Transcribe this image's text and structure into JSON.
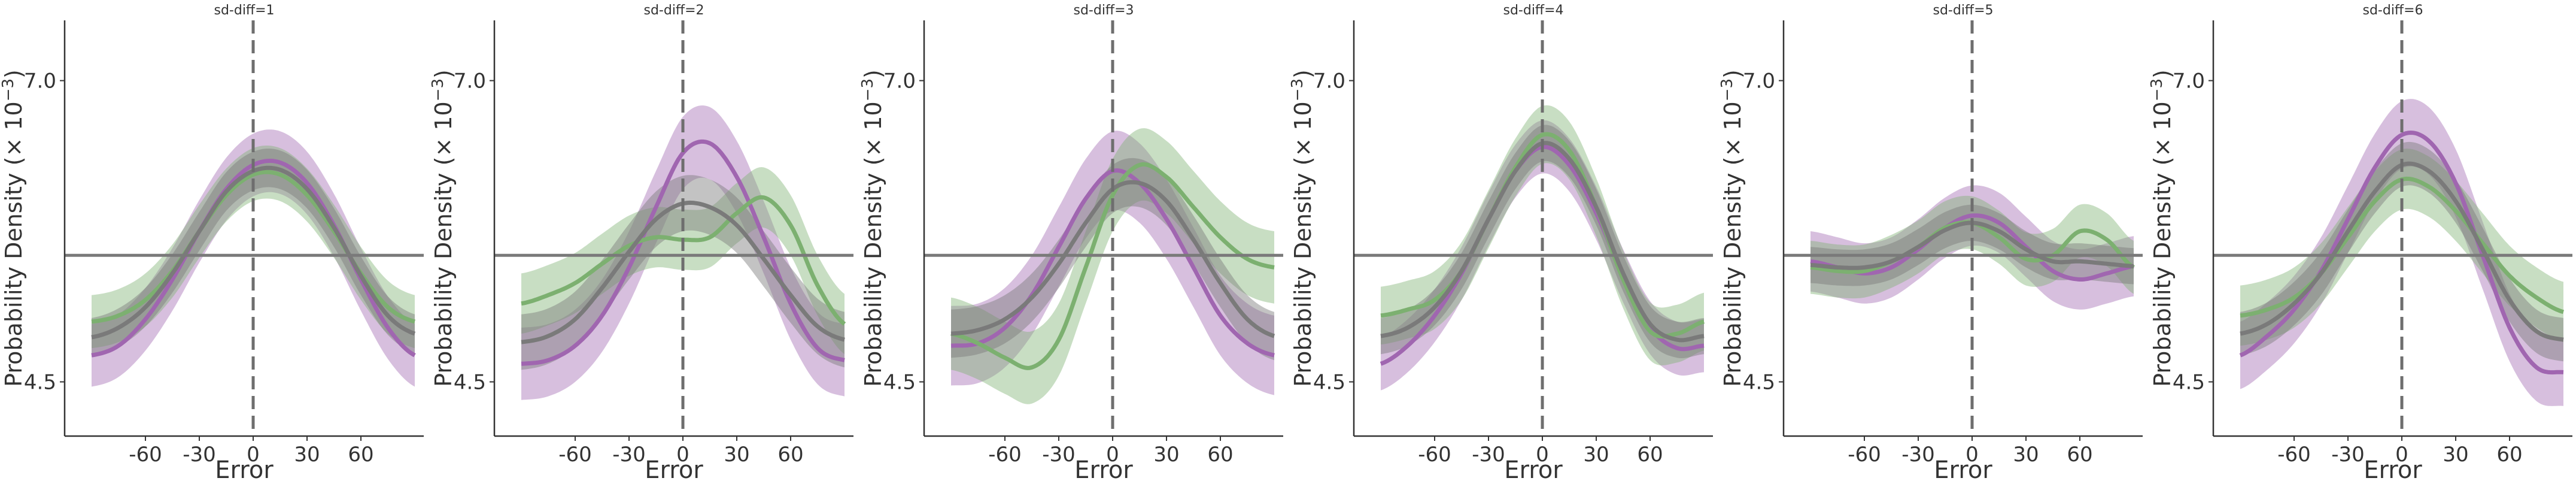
{
  "chart_data": {
    "type": "line",
    "xlabel": "Error",
    "ylabel": "Probability Density (× 10",
    "ylabel_exp": "−3",
    "ylabel_close": ")",
    "x_ticks": [
      -60,
      -30,
      0,
      30,
      60
    ],
    "y_ticks": [
      4.5,
      7.0
    ],
    "y_tick_labels": [
      "4.5",
      "7.0"
    ],
    "xlim": [
      -105,
      95
    ],
    "ylim": [
      4.05,
      7.5
    ],
    "reference_hline": 5.55,
    "reference_vline": 0,
    "x": [
      -90,
      -75,
      -60,
      -45,
      -30,
      -15,
      0,
      15,
      30,
      45,
      60,
      75,
      90
    ],
    "colors": {
      "purple": "#a066b0",
      "green": "#7cb070",
      "gray": "#7a7a7a"
    },
    "panels": [
      {
        "title": "sd-diff=1",
        "series": [
          {
            "color": "purple",
            "y": [
              4.72,
              4.8,
              5.02,
              5.35,
              5.75,
              6.1,
              6.3,
              6.32,
              6.15,
              5.8,
              5.35,
              4.95,
              4.72
            ],
            "band": 0.26
          },
          {
            "color": "green",
            "y": [
              5.0,
              5.05,
              5.18,
              5.42,
              5.75,
              6.05,
              6.22,
              6.22,
              6.05,
              5.75,
              5.4,
              5.12,
              5.0
            ],
            "band": 0.22
          },
          {
            "color": "gray",
            "y": [
              4.87,
              4.95,
              5.12,
              5.4,
              5.75,
              6.08,
              6.25,
              6.26,
              6.1,
              5.78,
              5.38,
              5.05,
              4.9
            ],
            "band": 0.16
          }
        ]
      },
      {
        "title": "sd-diff=2",
        "series": [
          {
            "color": "purple",
            "y": [
              4.65,
              4.68,
              4.8,
              5.05,
              5.45,
              5.95,
              6.4,
              6.48,
              6.2,
              5.7,
              5.15,
              4.78,
              4.68
            ],
            "band": 0.3
          },
          {
            "color": "green",
            "y": [
              5.15,
              5.22,
              5.32,
              5.48,
              5.63,
              5.7,
              5.68,
              5.7,
              5.9,
              6.03,
              5.8,
              5.3,
              4.98
            ],
            "band": 0.25
          },
          {
            "color": "gray",
            "y": [
              4.83,
              4.88,
              5.02,
              5.28,
              5.58,
              5.85,
              5.98,
              5.95,
              5.8,
              5.52,
              5.22,
              4.96,
              4.85
            ],
            "band": 0.23
          }
        ]
      },
      {
        "title": "sd-diff=3",
        "series": [
          {
            "color": "purple",
            "y": [
              4.8,
              4.82,
              4.95,
              5.22,
              5.62,
              6.02,
              6.25,
              6.15,
              5.85,
              5.45,
              5.05,
              4.82,
              4.72
            ],
            "band": 0.33
          },
          {
            "color": "green",
            "y": [
              4.9,
              4.82,
              4.7,
              4.62,
              4.85,
              5.45,
              6.05,
              6.3,
              6.2,
              5.95,
              5.7,
              5.52,
              5.45
            ],
            "band": 0.3
          },
          {
            "color": "gray",
            "y": [
              4.9,
              4.93,
              5.02,
              5.2,
              5.48,
              5.82,
              6.1,
              6.15,
              6.0,
              5.68,
              5.32,
              5.02,
              4.88
            ],
            "band": 0.2
          }
        ]
      },
      {
        "title": "sd-diff=4",
        "series": [
          {
            "color": "purple",
            "y": [
              4.65,
              4.8,
              5.05,
              5.4,
              5.85,
              6.25,
              6.45,
              6.3,
              5.9,
              5.38,
              4.95,
              4.78,
              4.8
            ],
            "band": 0.22
          },
          {
            "color": "green",
            "y": [
              5.05,
              5.1,
              5.18,
              5.42,
              5.85,
              6.28,
              6.55,
              6.42,
              5.95,
              5.35,
              4.92,
              4.9,
              5.0
            ],
            "band": 0.24
          },
          {
            "color": "gray",
            "y": [
              4.88,
              4.95,
              5.12,
              5.42,
              5.85,
              6.25,
              6.48,
              6.35,
              5.95,
              5.4,
              4.98,
              4.85,
              4.88
            ],
            "band": 0.15
          }
        ]
      },
      {
        "title": "sd-diff=5",
        "series": [
          {
            "color": "purple",
            "y": [
              5.5,
              5.45,
              5.4,
              5.45,
              5.6,
              5.78,
              5.88,
              5.82,
              5.62,
              5.42,
              5.35,
              5.4,
              5.46
            ],
            "band": 0.25
          },
          {
            "color": "green",
            "y": [
              5.45,
              5.42,
              5.42,
              5.5,
              5.62,
              5.78,
              5.82,
              5.7,
              5.52,
              5.55,
              5.75,
              5.68,
              5.45
            ],
            "band": 0.22
          },
          {
            "color": "gray",
            "y": [
              5.47,
              5.45,
              5.45,
              5.5,
              5.62,
              5.76,
              5.82,
              5.75,
              5.6,
              5.5,
              5.5,
              5.48,
              5.46
            ],
            "band": 0.15
          }
        ]
      },
      {
        "title": "sd-diff=6",
        "series": [
          {
            "color": "purple",
            "y": [
              4.72,
              4.88,
              5.1,
              5.42,
              5.85,
              6.28,
              6.55,
              6.5,
              6.15,
              5.55,
              4.95,
              4.62,
              4.58
            ],
            "band": 0.28
          },
          {
            "color": "green",
            "y": [
              5.05,
              5.1,
              5.2,
              5.4,
              5.7,
              6.0,
              6.18,
              6.12,
              5.92,
              5.65,
              5.38,
              5.2,
              5.08
            ],
            "band": 0.25
          },
          {
            "color": "gray",
            "y": [
              4.9,
              4.98,
              5.15,
              5.4,
              5.75,
              6.08,
              6.3,
              6.25,
              6.0,
              5.6,
              5.18,
              4.92,
              4.85
            ],
            "band": 0.18
          }
        ]
      }
    ]
  }
}
